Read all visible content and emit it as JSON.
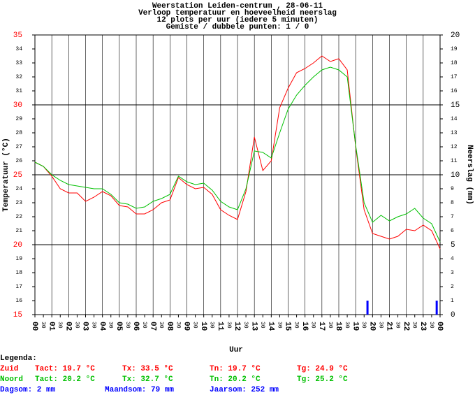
{
  "chart_data": {
    "type": "line",
    "title": [
      "Weerstation Leiden-centrum , 28-06-11",
      "Verloop temperatuur en hoeveelheid neerslag",
      "12 plots per uur (iedere 5 minuten)",
      "Gemiste / dubbele punten: 1 / 0"
    ],
    "y_label": "Temperatuur (°C)",
    "y2_label": "Neerslag (mm)",
    "x_label": "Uur",
    "x": [
      0,
      0.5,
      1,
      1.5,
      2,
      2.5,
      3,
      3.5,
      4,
      4.5,
      5,
      5.5,
      6,
      6.5,
      7,
      7.5,
      8,
      8.5,
      9,
      9.5,
      10,
      10.5,
      11,
      11.5,
      12,
      12.5,
      13,
      13.5,
      14,
      14.5,
      15,
      15.5,
      16,
      16.5,
      17,
      17.5,
      18,
      18.5,
      19,
      19.5,
      20,
      20.5,
      21,
      21.5,
      22,
      22.5,
      23,
      23.5,
      24
    ],
    "series": [
      {
        "name": "Zuid",
        "color": "#ff0000",
        "values": [
          25.9,
          25.6,
          24.9,
          24.0,
          23.7,
          23.7,
          23.1,
          23.4,
          23.8,
          23.5,
          22.8,
          22.7,
          22.2,
          22.2,
          22.5,
          23.0,
          23.2,
          24.8,
          24.3,
          24.0,
          24.1,
          23.6,
          22.5,
          22.1,
          21.8,
          23.8,
          27.7,
          25.3,
          26.0,
          29.8,
          31.2,
          32.3,
          32.6,
          33.0,
          33.5,
          33.1,
          33.3,
          32.5,
          27.0,
          22.5,
          20.8,
          20.6,
          20.4,
          20.6,
          21.1,
          21.0,
          21.4,
          21.0,
          19.7
        ]
      },
      {
        "name": "Noord",
        "color": "#00c000",
        "values": [
          25.9,
          25.6,
          25.0,
          24.6,
          24.3,
          24.2,
          24.1,
          24.0,
          24.0,
          23.6,
          23.0,
          22.9,
          22.6,
          22.7,
          23.1,
          23.3,
          23.6,
          24.9,
          24.5,
          24.3,
          24.4,
          23.9,
          23.1,
          22.7,
          22.5,
          24.0,
          26.7,
          26.6,
          26.2,
          28.0,
          29.7,
          30.7,
          31.4,
          32.0,
          32.5,
          32.7,
          32.5,
          32.0,
          27.1,
          23.0,
          21.6,
          22.1,
          21.7,
          22.0,
          22.2,
          22.6,
          21.9,
          21.5,
          20.2
        ]
      }
    ],
    "rain": {
      "type": "bar",
      "axis": "y2",
      "color": "#0000ff",
      "x": [
        19.7,
        23.8
      ],
      "values": [
        1,
        1
      ]
    },
    "xlim": [
      0,
      24
    ],
    "xticks": [
      {
        "value": 0,
        "label": "00"
      },
      {
        "value": 0.5,
        "label": "30"
      },
      {
        "value": 1,
        "label": "01"
      },
      {
        "value": 1.5,
        "label": "30"
      },
      {
        "value": 2,
        "label": "02"
      },
      {
        "value": 2.5,
        "label": "30"
      },
      {
        "value": 3,
        "label": "03"
      },
      {
        "value": 3.5,
        "label": "30"
      },
      {
        "value": 4,
        "label": "04"
      },
      {
        "value": 4.5,
        "label": "30"
      },
      {
        "value": 5,
        "label": "05"
      },
      {
        "value": 5.5,
        "label": "30"
      },
      {
        "value": 6,
        "label": "06"
      },
      {
        "value": 6.5,
        "label": "30"
      },
      {
        "value": 7,
        "label": "07"
      },
      {
        "value": 7.5,
        "label": "30"
      },
      {
        "value": 8,
        "label": "08"
      },
      {
        "value": 8.5,
        "label": "30"
      },
      {
        "value": 9,
        "label": "09"
      },
      {
        "value": 9.5,
        "label": "30"
      },
      {
        "value": 10,
        "label": "10"
      },
      {
        "value": 10.5,
        "label": "30"
      },
      {
        "value": 11,
        "label": "11"
      },
      {
        "value": 11.5,
        "label": "30"
      },
      {
        "value": 12,
        "label": "12"
      },
      {
        "value": 12.5,
        "label": "30"
      },
      {
        "value": 13,
        "label": "13"
      },
      {
        "value": 13.5,
        "label": "30"
      },
      {
        "value": 14,
        "label": "14"
      },
      {
        "value": 14.5,
        "label": "30"
      },
      {
        "value": 15,
        "label": "15"
      },
      {
        "value": 15.5,
        "label": "30"
      },
      {
        "value": 16,
        "label": "16"
      },
      {
        "value": 16.5,
        "label": "30"
      },
      {
        "value": 17,
        "label": "17"
      },
      {
        "value": 17.5,
        "label": "30"
      },
      {
        "value": 18,
        "label": "18"
      },
      {
        "value": 18.5,
        "label": "30"
      },
      {
        "value": 19,
        "label": "19"
      },
      {
        "value": 19.5,
        "label": "30"
      },
      {
        "value": 20,
        "label": "20"
      },
      {
        "value": 20.5,
        "label": "30"
      },
      {
        "value": 21,
        "label": "21"
      },
      {
        "value": 21.5,
        "label": "30"
      },
      {
        "value": 22,
        "label": "22"
      },
      {
        "value": 22.5,
        "label": "30"
      },
      {
        "value": 23,
        "label": "23"
      },
      {
        "value": 23.5,
        "label": "30"
      },
      {
        "value": 24,
        "label": "00"
      }
    ],
    "ylim": [
      15,
      35
    ],
    "yticks": [
      15,
      16,
      17,
      18,
      19,
      20,
      21,
      22,
      23,
      24,
      25,
      26,
      27,
      28,
      29,
      30,
      31,
      32,
      33,
      34,
      35
    ],
    "y2lim": [
      0,
      20
    ],
    "y2ticks": [
      0,
      1,
      2,
      3,
      4,
      5,
      6,
      7,
      8,
      9,
      10,
      11,
      12,
      13,
      14,
      15,
      16,
      17,
      18,
      19,
      20
    ],
    "grid": true,
    "legend_title": "Legenda:",
    "summary": [
      {
        "color": "#ff0000",
        "items": [
          "Tact: 19.7 °C",
          "Tx: 33.5 °C",
          "Tn: 19.7 °C",
          "Tg: 24.9 °C"
        ]
      },
      {
        "color": "#00c000",
        "items": [
          "Tact: 20.2 °C",
          "Tx: 32.7 °C",
          "Tn: 20.2 °C",
          "Tg: 25.2 °C"
        ]
      },
      {
        "color": "#0000ff",
        "items": [
          "Dagsom: 2 mm",
          "Maandsom: 79 mm",
          "Jaarsom: 252 mm"
        ]
      }
    ]
  }
}
